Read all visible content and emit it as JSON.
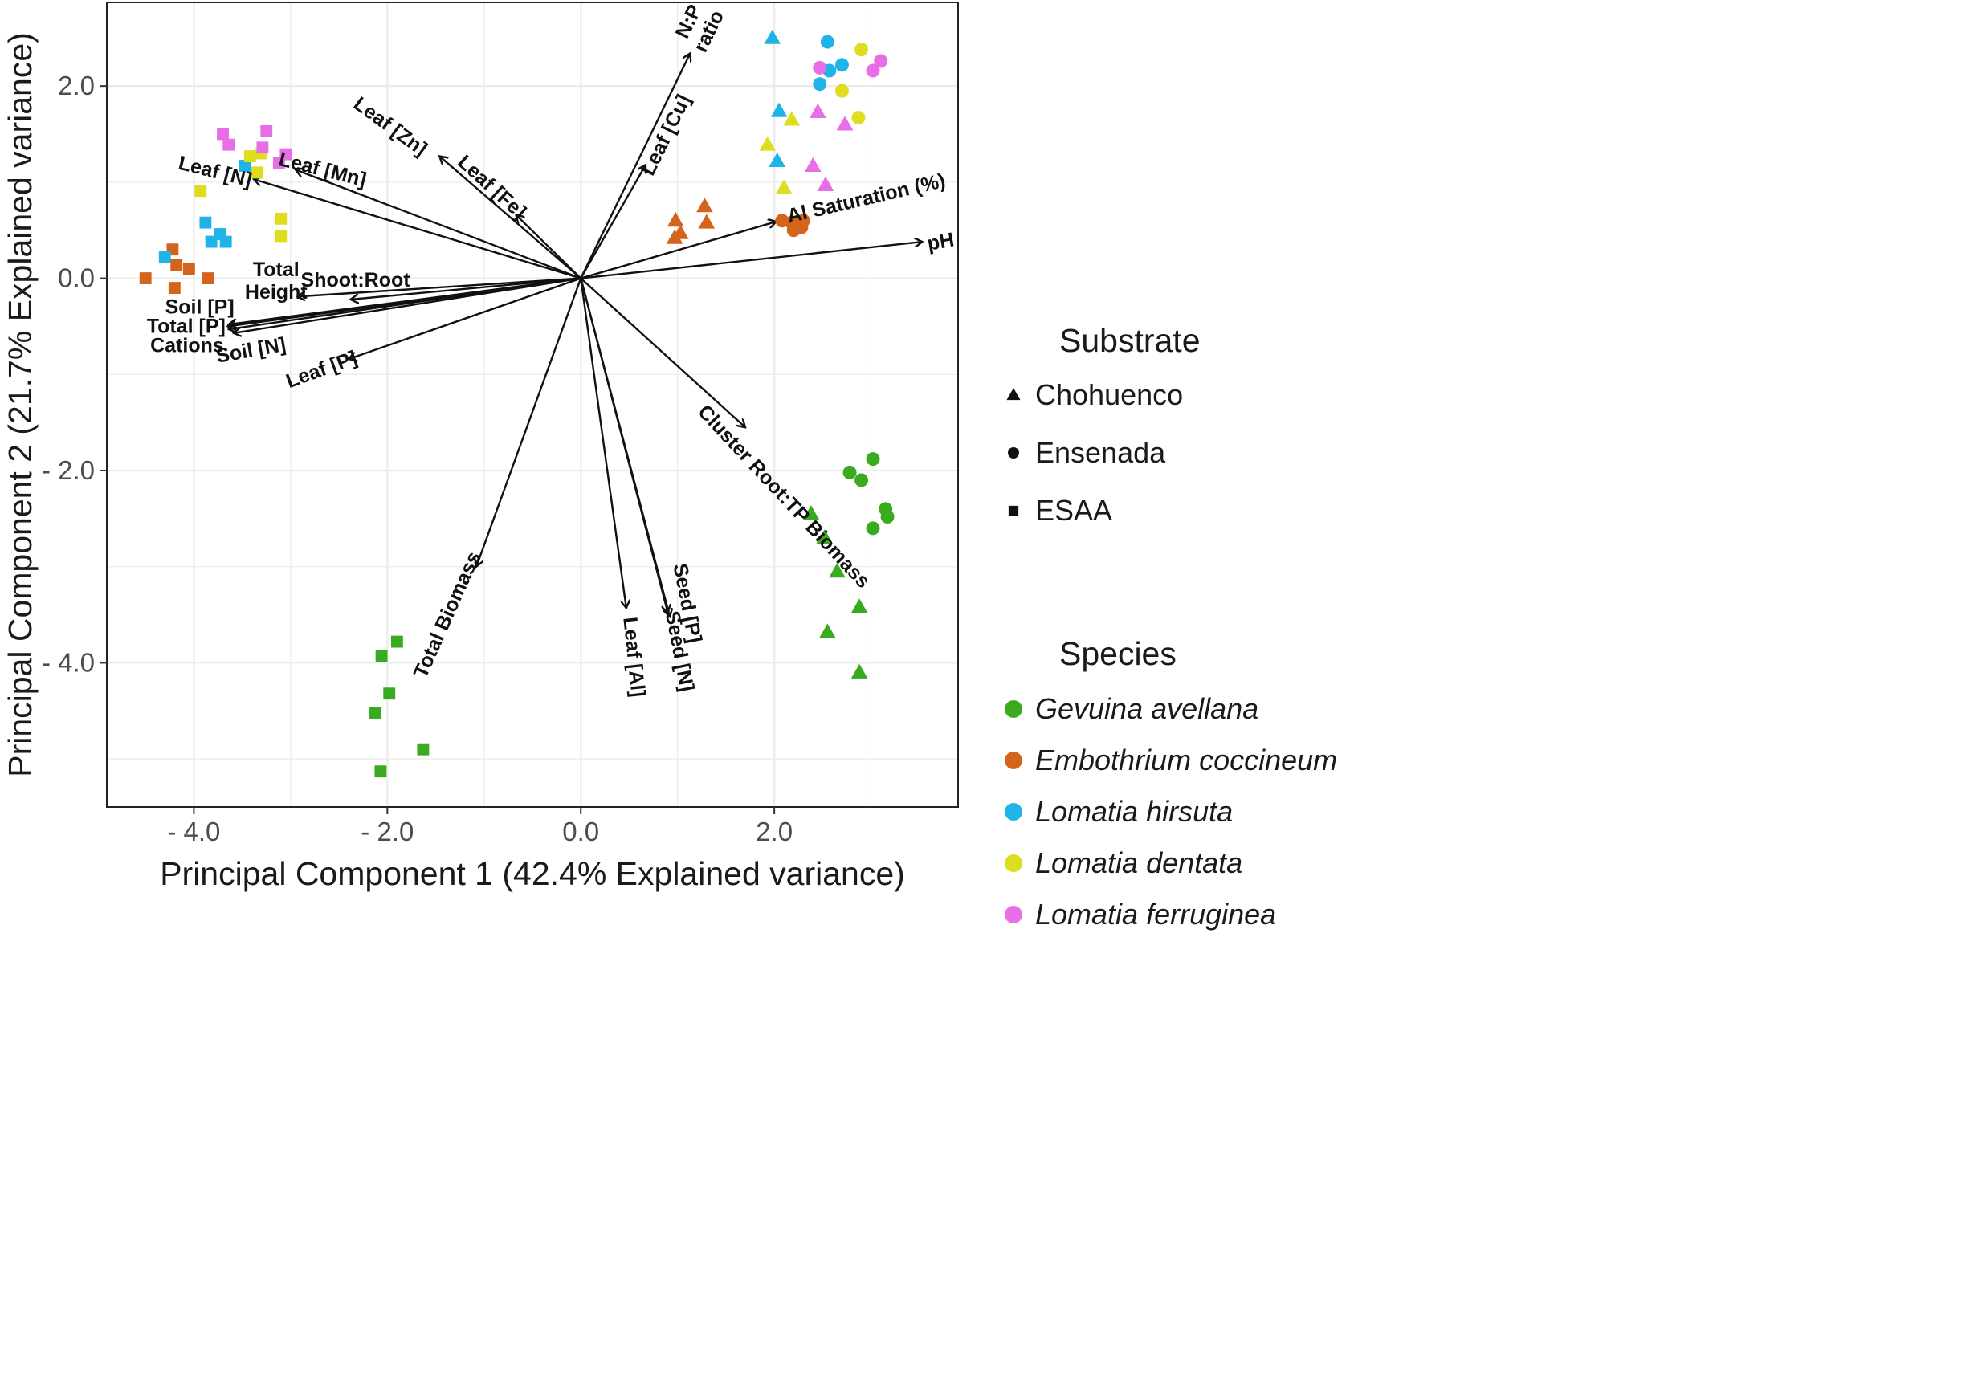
{
  "chart_data": {
    "type": "scatter",
    "subtype": "pca-biplot",
    "title": "",
    "xlabel": "Principal Component 1 (42.4% Explained variance)",
    "ylabel": "Principal Component 2 (21.7% Explained variance)",
    "xlim": [
      -4.9,
      3.9
    ],
    "ylim": [
      -5.5,
      2.87
    ],
    "xticks": [
      -4.0,
      -2.0,
      0.0,
      2.0
    ],
    "xtick_labels": [
      "- 4.0",
      "- 2.0",
      "0.0",
      "2.0"
    ],
    "yticks": [
      2.0,
      0.0,
      -2.0,
      -4.0
    ],
    "ytick_labels": [
      "2.0",
      "0.0",
      "- 2.0",
      "- 4.0"
    ],
    "grid": true,
    "legend_position": "right",
    "substrate_legend": {
      "title": "Substrate",
      "items": [
        {
          "name": "Chohuenco",
          "shape": "triangle"
        },
        {
          "name": "Ensenada",
          "shape": "circle"
        },
        {
          "name": "ESAA",
          "shape": "square"
        }
      ]
    },
    "species_legend": {
      "title": "Species",
      "items": [
        {
          "name": "Gevuina avellana",
          "color": "#3aab1f"
        },
        {
          "name": "Embothrium coccineum",
          "color": "#d4641c"
        },
        {
          "name": "Lomatia hirsuta",
          "color": "#1fb4e8"
        },
        {
          "name": "Lomatia dentata",
          "color": "#dede1e"
        },
        {
          "name": "Lomatia ferruginea",
          "color": "#e86ee8"
        }
      ]
    },
    "series": [
      {
        "name": "Gevuina avellana / Chohuenco",
        "species": 0,
        "shape": "triangle",
        "points": [
          [
            2.38,
            -2.45
          ],
          [
            2.52,
            -2.7
          ],
          [
            2.65,
            -3.05
          ],
          [
            2.88,
            -3.42
          ],
          [
            2.55,
            -3.68
          ],
          [
            2.88,
            -4.1
          ]
        ]
      },
      {
        "name": "Gevuina avellana / Ensenada",
        "species": 0,
        "shape": "circle",
        "points": [
          [
            2.78,
            -2.02
          ],
          [
            2.9,
            -2.1
          ],
          [
            3.02,
            -1.88
          ],
          [
            3.15,
            -2.4
          ],
          [
            3.17,
            -2.48
          ],
          [
            3.02,
            -2.6
          ]
        ]
      },
      {
        "name": "Gevuina avellana / ESAA",
        "species": 0,
        "shape": "square",
        "points": [
          [
            -1.9,
            -3.78
          ],
          [
            -2.06,
            -3.93
          ],
          [
            -1.98,
            -4.32
          ],
          [
            -2.13,
            -4.52
          ],
          [
            -1.63,
            -4.9
          ],
          [
            -2.07,
            -5.13
          ]
        ]
      },
      {
        "name": "Embothrium coccineum / Chohuenco",
        "species": 1,
        "shape": "triangle",
        "points": [
          [
            0.98,
            0.6
          ],
          [
            1.28,
            0.75
          ],
          [
            1.03,
            0.47
          ],
          [
            0.97,
            0.42
          ],
          [
            1.3,
            0.58
          ]
        ]
      },
      {
        "name": "Embothrium coccineum / Ensenada",
        "species": 1,
        "shape": "circle",
        "points": [
          [
            2.08,
            0.6
          ],
          [
            2.18,
            0.58
          ],
          [
            2.3,
            0.6
          ],
          [
            2.28,
            0.53
          ],
          [
            2.2,
            0.5
          ]
        ]
      },
      {
        "name": "Embothrium coccineum / ESAA",
        "species": 1,
        "shape": "square",
        "points": [
          [
            -4.5,
            0.0
          ],
          [
            -4.22,
            0.3
          ],
          [
            -4.18,
            0.14
          ],
          [
            -4.05,
            0.1
          ],
          [
            -4.2,
            -0.1
          ],
          [
            -3.85,
            0.0
          ]
        ]
      },
      {
        "name": "Lomatia hirsuta / Chohuenco",
        "species": 2,
        "shape": "triangle",
        "points": [
          [
            1.98,
            2.5
          ],
          [
            2.05,
            1.74
          ],
          [
            2.03,
            1.22
          ]
        ]
      },
      {
        "name": "Lomatia hirsuta / Ensenada",
        "species": 2,
        "shape": "circle",
        "points": [
          [
            2.55,
            2.46
          ],
          [
            2.7,
            2.22
          ],
          [
            2.57,
            2.16
          ],
          [
            2.47,
            2.02
          ]
        ]
      },
      {
        "name": "Lomatia hirsuta / ESAA",
        "species": 2,
        "shape": "square",
        "points": [
          [
            -4.3,
            0.22
          ],
          [
            -3.88,
            0.58
          ],
          [
            -3.73,
            0.46
          ],
          [
            -3.82,
            0.38
          ],
          [
            -3.67,
            0.38
          ],
          [
            -3.47,
            1.17
          ]
        ]
      },
      {
        "name": "Lomatia dentata / Chohuenco",
        "species": 3,
        "shape": "triangle",
        "points": [
          [
            2.18,
            1.65
          ],
          [
            1.93,
            1.39
          ],
          [
            2.1,
            0.94
          ]
        ]
      },
      {
        "name": "Lomatia dentata / Ensenada",
        "species": 3,
        "shape": "circle",
        "points": [
          [
            2.9,
            2.38
          ],
          [
            2.7,
            1.95
          ],
          [
            2.87,
            1.67
          ]
        ]
      },
      {
        "name": "Lomatia dentata / ESAA",
        "species": 3,
        "shape": "square",
        "points": [
          [
            -3.93,
            0.91
          ],
          [
            -3.42,
            1.27
          ],
          [
            -3.3,
            1.3
          ],
          [
            -3.35,
            1.1
          ],
          [
            -3.1,
            0.62
          ],
          [
            -3.1,
            0.44
          ]
        ]
      },
      {
        "name": "Lomatia ferruginea / Chohuenco",
        "species": 4,
        "shape": "triangle",
        "points": [
          [
            2.45,
            1.73
          ],
          [
            2.73,
            1.6
          ],
          [
            2.4,
            1.17
          ],
          [
            2.53,
            0.97
          ]
        ]
      },
      {
        "name": "Lomatia ferruginea / Ensenada",
        "species": 4,
        "shape": "circle",
        "points": [
          [
            2.47,
            2.19
          ],
          [
            3.1,
            2.26
          ],
          [
            3.02,
            2.16
          ]
        ]
      },
      {
        "name": "Lomatia ferruginea / ESAA",
        "species": 4,
        "shape": "square",
        "points": [
          [
            -3.7,
            1.5
          ],
          [
            -3.64,
            1.39
          ],
          [
            -3.25,
            1.53
          ],
          [
            -3.29,
            1.36
          ],
          [
            -3.05,
            1.29
          ],
          [
            -3.12,
            1.2
          ]
        ]
      }
    ],
    "loadings": [
      {
        "label": "N:P ratio",
        "lines": [
          "N:P",
          "ratio"
        ],
        "x": 1.13,
        "y": 2.34,
        "lx": 1.22,
        "ly": 2.62,
        "rot": -64
      },
      {
        "label": "Leaf [Cu]",
        "lines": [
          "Leaf [Cu]"
        ],
        "x": 0.67,
        "y": 1.18,
        "lx": 0.88,
        "ly": 1.49,
        "rot": -64
      },
      {
        "label": "Leaf [Zn]",
        "lines": [
          "Leaf [Zn]"
        ],
        "x": -1.46,
        "y": 1.27,
        "lx": -1.97,
        "ly": 1.58,
        "rot": 36
      },
      {
        "label": "Leaf [Fe]",
        "lines": [
          "Leaf [Fe]"
        ],
        "x": -0.67,
        "y": 0.66,
        "lx": -0.92,
        "ly": 0.95,
        "rot": 42
      },
      {
        "label": "Leaf [Mn]",
        "lines": [
          "Leaf [Mn]"
        ],
        "x": -2.95,
        "y": 1.13,
        "lx": -2.67,
        "ly": 1.13,
        "rot": 14
      },
      {
        "label": "Leaf [N]",
        "lines": [
          "Leaf [N]"
        ],
        "x": -3.38,
        "y": 1.03,
        "lx": -3.78,
        "ly": 1.11,
        "rot": 14
      },
      {
        "label": "Al Saturation (%)",
        "lines": [
          "Al Saturation (%)"
        ],
        "x": 2.02,
        "y": 0.59,
        "lx": 2.95,
        "ly": 0.83,
        "rot": -13
      },
      {
        "label": "pH",
        "lines": [
          "pH"
        ],
        "x": 3.53,
        "y": 0.38,
        "lx": 3.72,
        "ly": 0.38,
        "rot": -10
      },
      {
        "label": "Shoot:Root",
        "lines": [
          "Shoot:Root"
        ],
        "x": -2.38,
        "y": -0.22,
        "lx": -2.33,
        "ly": -0.02,
        "rot": 0
      },
      {
        "label": "Total Height",
        "lines": [
          "Total",
          "Height"
        ],
        "x": -2.93,
        "y": -0.19,
        "lx": -3.15,
        "ly": -0.03,
        "rot": 0
      },
      {
        "label": "Soil [P]",
        "lines": [
          "Soil [P]"
        ],
        "x": -3.64,
        "y": -0.48,
        "lx": -3.94,
        "ly": -0.3,
        "rot": 0
      },
      {
        "label": "Total [P]",
        "lines": [
          "Total [P]"
        ],
        "x": -3.65,
        "y": -0.5,
        "lx": -4.08,
        "ly": -0.5,
        "rot": 0
      },
      {
        "label": "Cations",
        "lines": [
          "Cations"
        ],
        "x": -3.64,
        "y": -0.53,
        "lx": -4.07,
        "ly": -0.7,
        "rot": 0
      },
      {
        "label": "Soil [N]",
        "lines": [
          "Soil [N]"
        ],
        "x": -3.59,
        "y": -0.57,
        "lx": -3.41,
        "ly": -0.75,
        "rot": -10
      },
      {
        "label": "Leaf [P]",
        "lines": [
          "Leaf [P]"
        ],
        "x": -2.4,
        "y": -0.84,
        "lx": -2.68,
        "ly": -0.95,
        "rot": -20
      },
      {
        "label": "Cluster Root:TP Biomass",
        "lines": [
          "Cluster Root:TP Biomass"
        ],
        "x": 1.7,
        "y": -1.55,
        "lx": 2.1,
        "ly": -2.27,
        "rot": 47
      },
      {
        "label": "Total Biomass",
        "lines": [
          "Total Biomass"
        ],
        "x": -1.08,
        "y": -3.0,
        "lx": -1.38,
        "ly": -3.5,
        "rot": -66
      },
      {
        "label": "Leaf [Al]",
        "lines": [
          "Leaf [Al]"
        ],
        "x": 0.47,
        "y": -3.43,
        "lx": 0.55,
        "ly": -3.94,
        "rot": 84
      },
      {
        "label": "Seed [P]",
        "lines": [
          "Seed [P]"
        ],
        "x": 0.9,
        "y": -3.48,
        "lx": 1.1,
        "ly": -3.38,
        "rot": 79
      },
      {
        "label": "Seed [N]",
        "lines": [
          "Seed [N]"
        ],
        "x": 0.92,
        "y": -3.52,
        "lx": 1.02,
        "ly": -3.88,
        "rot": 79
      }
    ]
  }
}
